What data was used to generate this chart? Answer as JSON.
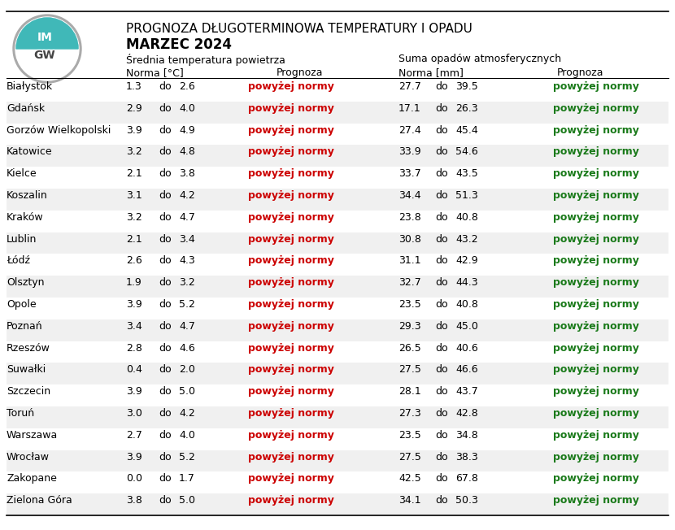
{
  "title1": "PROGNOZA DŁUGOTERMINOWA TEMPERATURY I OPADU",
  "title2": "MARZEC 2024",
  "header_temp": "Średnią temperatura powietrza",
  "header_prec": "Suma opadów atmosferycznych",
  "subhdr_temp_norm": "Norma [°C]",
  "subhdr_temp_prog": "Prognoza",
  "subhdr_prec_norm": "Norma [mm]",
  "subhdr_prec_prog": "Prognoza",
  "cities": [
    "Białystok",
    "Gdańsk",
    "Gorzów Wielkopolski",
    "Katowice",
    "Kielce",
    "Koszalin",
    "Kraków",
    "Lublin",
    "Łódź",
    "Olsztyn",
    "Opole",
    "Poznań",
    "Rzeszów",
    "Suwałki",
    "Szczecin",
    "Toruń",
    "Warszawa",
    "Wrocław",
    "Zakopane",
    "Zielona Góra"
  ],
  "temp_norm_low": [
    1.3,
    2.9,
    3.9,
    3.2,
    2.1,
    3.1,
    3.2,
    2.1,
    2.6,
    1.9,
    3.9,
    3.4,
    2.8,
    0.4,
    3.9,
    3.0,
    2.7,
    3.9,
    0.0,
    3.8
  ],
  "temp_norm_high": [
    2.6,
    4.0,
    4.9,
    4.8,
    3.8,
    4.2,
    4.7,
    3.4,
    4.3,
    3.2,
    5.2,
    4.7,
    4.6,
    2.0,
    5.0,
    4.2,
    4.0,
    5.2,
    1.7,
    5.0
  ],
  "prec_norm_low": [
    27.7,
    17.1,
    27.4,
    33.9,
    33.7,
    34.4,
    23.8,
    30.8,
    31.1,
    32.7,
    23.5,
    29.3,
    26.5,
    27.5,
    28.1,
    27.3,
    23.5,
    27.5,
    42.5,
    34.1
  ],
  "prec_norm_high": [
    39.5,
    26.3,
    45.4,
    54.6,
    43.5,
    51.3,
    40.8,
    43.2,
    42.9,
    44.3,
    40.8,
    45.0,
    40.6,
    46.6,
    43.7,
    42.8,
    34.8,
    38.3,
    67.8,
    50.3
  ],
  "temp_forecast": "powyżej normy",
  "prec_forecast": "powyżej normy",
  "temp_forecast_color": "#cc0000",
  "prec_forecast_color": "#1a7a1a",
  "bg_color": "#ffffff",
  "text_color": "#000000",
  "logo_teal": "#40b8b8",
  "logo_gray": "#888888",
  "logo_dark": "#444444"
}
